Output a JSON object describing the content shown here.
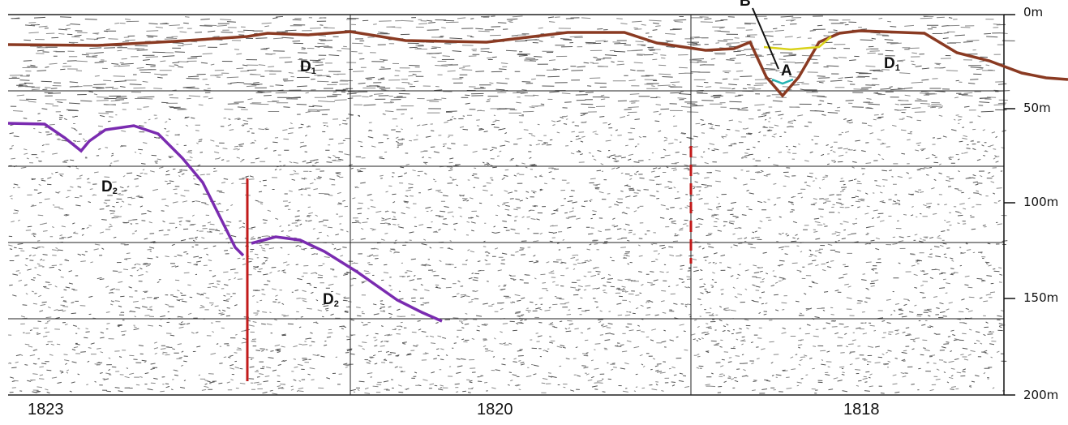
{
  "depth_axis": {
    "ticks": [
      "0m",
      "50m",
      "100m",
      "150m",
      "200m"
    ]
  },
  "distance_axis": {
    "ticks": [
      "1823",
      "1820",
      "1818"
    ]
  },
  "units": [
    {
      "label": "D",
      "sub": "1"
    },
    {
      "label": "D",
      "sub": "1"
    },
    {
      "label": "D",
      "sub": "2"
    },
    {
      "label": "D",
      "sub": "2"
    }
  ],
  "points": {
    "a": "A",
    "b": "B"
  },
  "colors": {
    "seafloor": "#8a3a22",
    "layer_a": "#25b3b3",
    "layer_b": "#d9d21a",
    "horizon_d2": "#7a2bb0",
    "fault": "#c21a1a",
    "grid": "#222222",
    "background": "#ffffff"
  }
}
